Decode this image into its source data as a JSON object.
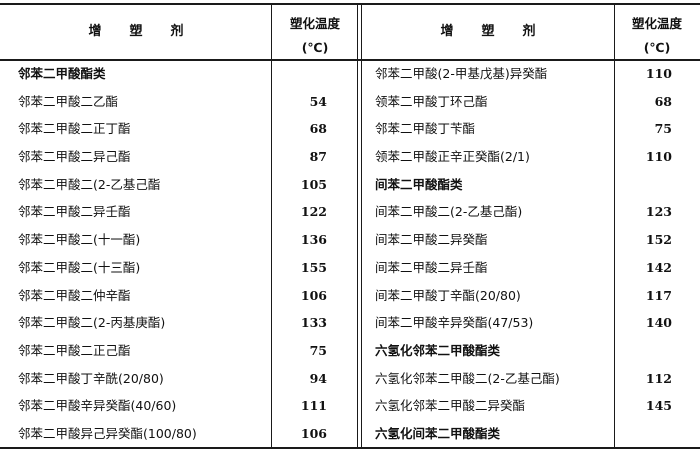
{
  "header": {
    "name_chars": [
      "增",
      "塑",
      "剂"
    ],
    "temp_line1": "塑化温度",
    "temp_line2": "(℃)"
  },
  "left_rows": [
    {
      "name": "邻苯二甲酸酯类",
      "value": "",
      "category": true
    },
    {
      "name": "邻苯二甲酸二乙酯",
      "value": "54"
    },
    {
      "name": "邻苯二甲酸二正丁酯",
      "value": "68"
    },
    {
      "name": "邻苯二甲酸二异己酯",
      "value": "87"
    },
    {
      "name": "邻苯二甲酸二(2-乙基己酯",
      "value": "105"
    },
    {
      "name": "邻苯二甲酸二异壬酯",
      "value": "122"
    },
    {
      "name": "邻苯二甲酸二(十一酯)",
      "value": "136"
    },
    {
      "name": "邻苯二甲酸二(十三酯)",
      "value": "155"
    },
    {
      "name": "邻苯二甲酸二仲辛酯",
      "value": "106"
    },
    {
      "name": "邻苯二甲酸二(2-丙基庚酯)",
      "value": "133"
    },
    {
      "name": "邻苯二甲酸二正己酯",
      "value": "75"
    },
    {
      "name": "邻苯二甲酸丁辛酰(20/80)",
      "value": "94"
    },
    {
      "name": "邻苯二甲酸辛异癸酯(40/60)",
      "value": "111"
    },
    {
      "name": "邻苯二甲酸异己异癸酯(100/80)",
      "value": "106"
    }
  ],
  "right_rows": [
    {
      "name": "邻苯二甲酸(2-甲基戊基)异癸酯",
      "value": "110"
    },
    {
      "name": "领苯二甲酸丁环己酯",
      "value": "68"
    },
    {
      "name": "邻苯二甲酸丁苄酯",
      "value": "75"
    },
    {
      "name": "领苯二甲酸正辛正癸酯(2/1)",
      "value": "110"
    },
    {
      "name": "间苯二甲酸酯类",
      "value": "",
      "category": true
    },
    {
      "name": "间苯二甲酸二(2-乙基己酯)",
      "value": "123"
    },
    {
      "name": "间苯二甲酸二异癸酯",
      "value": "152"
    },
    {
      "name": "间苯二甲酸二异壬酯",
      "value": "142"
    },
    {
      "name": "间苯二甲酸丁辛酯(20/80)",
      "value": "117"
    },
    {
      "name": "间苯二甲酸辛异癸酯(47/53)",
      "value": "140"
    },
    {
      "name": "六氢化邻苯二甲酸酯类",
      "value": "",
      "category": true
    },
    {
      "name": "六氢化邻苯二甲酸二(2-乙基己酯)",
      "value": "112"
    },
    {
      "name": "六氢化邻苯二甲酸二异癸酯",
      "value": "145"
    },
    {
      "name": "六氢化间苯二甲酸酯类",
      "value": "",
      "category": true
    }
  ]
}
